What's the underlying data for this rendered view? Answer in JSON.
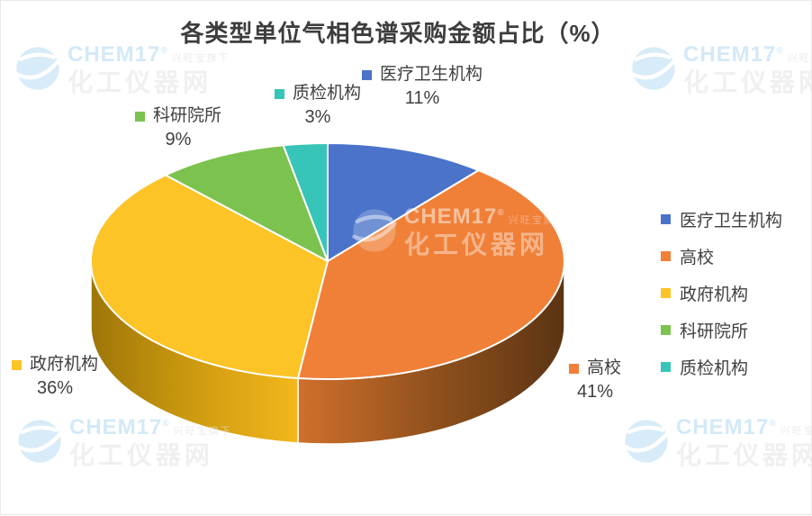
{
  "page": {
    "background": "#ffffff",
    "text_color": "#404040"
  },
  "chart_data": {
    "type": "pie",
    "projection": "3d",
    "title": "各类型单位气相色谱采购金额占比（%）",
    "unit": "%",
    "start_angle_deg": 0,
    "direction": "clockwise",
    "legend_position": "right",
    "data_labels": "outside, name + percent",
    "segments": [
      {
        "key": "medical-health",
        "label": "医疗卫生机构",
        "value": 11,
        "color": "#4A73C9"
      },
      {
        "key": "universities",
        "label": "高校",
        "value": 41,
        "color": "#F08038",
        "side_gradient": [
          "#D0702C",
          "#91511D",
          "#5B3413"
        ]
      },
      {
        "key": "government",
        "label": "政府机构",
        "value": 36,
        "color": "#FDC428",
        "side_gradient": [
          "#9E7608",
          "#CE9B10",
          "#F4B71C"
        ]
      },
      {
        "key": "research-institutes",
        "label": "科研院所",
        "value": 9,
        "color": "#7CC24F"
      },
      {
        "key": "quality-inspection",
        "label": "质检机构",
        "value": 3,
        "color": "#36C5B8"
      }
    ]
  },
  "watermark": {
    "brand": "CHEM17",
    "registered": "®",
    "tagline": "兴旺宝旗下",
    "site": "化工仪器网"
  }
}
